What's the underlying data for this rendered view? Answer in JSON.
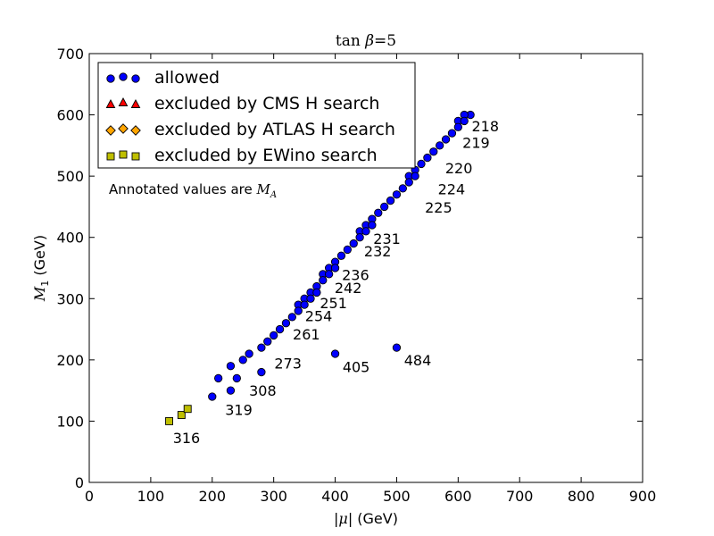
{
  "chart_data": {
    "type": "scatter",
    "title": {
      "prefix": "tan ",
      "symbol": "β",
      "suffix": "=5"
    },
    "xlabel": {
      "pre": "|",
      "symbol": "μ",
      "post": "| (GeV)"
    },
    "ylabel": {
      "symbol": "M",
      "sub": "1",
      "post": " (GeV)"
    },
    "xlim": [
      0,
      900
    ],
    "ylim": [
      0,
      700
    ],
    "xticks": [
      0,
      100,
      200,
      300,
      400,
      500,
      600,
      700,
      800,
      900
    ],
    "yticks": [
      0,
      100,
      200,
      300,
      400,
      500,
      600,
      700
    ],
    "grid": false,
    "legend_position": "top-left",
    "note": {
      "text": "Annotated values are ",
      "symbol": "M",
      "sub": "A"
    },
    "series": [
      {
        "name": "allowed",
        "marker": "circle",
        "color": "#0000ff",
        "points": [
          [
            620,
            600
          ],
          [
            610,
            600
          ],
          [
            600,
            590
          ],
          [
            610,
            590
          ],
          [
            600,
            580
          ],
          [
            590,
            570
          ],
          [
            580,
            560
          ],
          [
            570,
            550
          ],
          [
            560,
            540
          ],
          [
            550,
            530
          ],
          [
            540,
            520
          ],
          [
            530,
            510
          ],
          [
            520,
            500
          ],
          [
            530,
            500
          ],
          [
            520,
            490
          ],
          [
            510,
            480
          ],
          [
            500,
            470
          ],
          [
            490,
            460
          ],
          [
            480,
            450
          ],
          [
            470,
            440
          ],
          [
            460,
            430
          ],
          [
            450,
            420
          ],
          [
            460,
            420
          ],
          [
            440,
            410
          ],
          [
            450,
            410
          ],
          [
            440,
            400
          ],
          [
            430,
            390
          ],
          [
            420,
            380
          ],
          [
            410,
            370
          ],
          [
            400,
            360
          ],
          [
            390,
            350
          ],
          [
            400,
            350
          ],
          [
            380,
            340
          ],
          [
            390,
            340
          ],
          [
            380,
            330
          ],
          [
            370,
            320
          ],
          [
            360,
            310
          ],
          [
            370,
            310
          ],
          [
            350,
            300
          ],
          [
            360,
            300
          ],
          [
            340,
            290
          ],
          [
            350,
            290
          ],
          [
            340,
            280
          ],
          [
            330,
            270
          ],
          [
            320,
            260
          ],
          [
            310,
            250
          ],
          [
            300,
            240
          ],
          [
            290,
            230
          ],
          [
            280,
            220
          ],
          [
            260,
            210
          ],
          [
            250,
            200
          ],
          [
            230,
            190
          ],
          [
            280,
            180
          ],
          [
            210,
            170
          ],
          [
            240,
            170
          ],
          [
            230,
            150
          ],
          [
            200,
            140
          ],
          [
            400,
            210
          ],
          [
            500,
            220
          ]
        ]
      },
      {
        "name": "excluded by CMS H search",
        "marker": "triangle",
        "color": "#ff0000",
        "points": []
      },
      {
        "name": "excluded by ATLAS H search",
        "marker": "diamond",
        "color": "#ffa500",
        "points": []
      },
      {
        "name": "excluded by EWino search",
        "marker": "square",
        "color": "#bfbf00",
        "points": [
          [
            130,
            100
          ],
          [
            150,
            110
          ],
          [
            160,
            120
          ]
        ]
      }
    ],
    "annotations": [
      {
        "text": "218",
        "x": 622,
        "y": 582
      },
      {
        "text": "219",
        "x": 607,
        "y": 555
      },
      {
        "text": "220",
        "x": 579,
        "y": 513
      },
      {
        "text": "224",
        "x": 567,
        "y": 479
      },
      {
        "text": "225",
        "x": 546,
        "y": 449
      },
      {
        "text": "231",
        "x": 462,
        "y": 398
      },
      {
        "text": "232",
        "x": 447,
        "y": 378
      },
      {
        "text": "236",
        "x": 411,
        "y": 339
      },
      {
        "text": "242",
        "x": 399,
        "y": 318
      },
      {
        "text": "251",
        "x": 375,
        "y": 293
      },
      {
        "text": "254",
        "x": 351,
        "y": 272
      },
      {
        "text": "261",
        "x": 331,
        "y": 242
      },
      {
        "text": "273",
        "x": 301,
        "y": 195
      },
      {
        "text": "308",
        "x": 260,
        "y": 150
      },
      {
        "text": "319",
        "x": 221,
        "y": 119
      },
      {
        "text": "405",
        "x": 412,
        "y": 189
      },
      {
        "text": "484",
        "x": 512,
        "y": 200
      },
      {
        "text": "316",
        "x": 136,
        "y": 73
      }
    ]
  }
}
